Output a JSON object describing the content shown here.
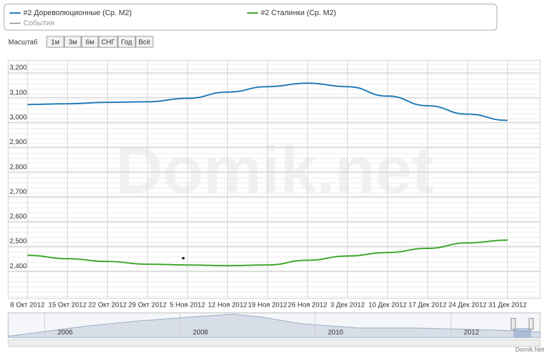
{
  "chart_data": {
    "type": "line",
    "legend": [
      "#2 Дореволюционные (Ср. М2)",
      "#2 Сталинки (Ср. М2)",
      "События"
    ],
    "events_color": "#aaaaaa",
    "x": [
      "8 Окт 2012",
      "15 Окт 2012",
      "22 Окт 2012",
      "29 Окт 2012",
      "5 Ноя 2012",
      "12 Ноя 2012",
      "19 Ноя 2012",
      "26 Ноя 2012",
      "3 Дек 2012",
      "10 Дек 2012",
      "17 Дек 2012",
      "24 Дек 2012",
      "31 Дек 2012"
    ],
    "series": [
      {
        "name": "#2 Дореволюционные (Ср. М2)",
        "color": "#1f7ab8",
        "values": [
          3072,
          3075,
          3081,
          3083,
          3097,
          3122,
          3144,
          3158,
          3144,
          3106,
          3067,
          3033,
          3008
        ]
      },
      {
        "name": "#2 Сталинки (Ср. М2)",
        "color": "#3ea62a",
        "values": [
          2464,
          2450,
          2439,
          2428,
          2425,
          2422,
          2425,
          2444,
          2461,
          2475,
          2492,
          2514,
          2525
        ]
      }
    ],
    "ylim": [
      2290,
      3250
    ],
    "yticks": [
      {
        "value": 2400,
        "label": "2,400"
      },
      {
        "value": 2500,
        "label": "2,500"
      },
      {
        "value": 2600,
        "label": "2,600"
      },
      {
        "value": 2700,
        "label": "2,700"
      },
      {
        "value": 2800,
        "label": "2,800"
      },
      {
        "value": 2900,
        "label": "2,900"
      },
      {
        "value": 3000,
        "label": "3,000"
      },
      {
        "value": 3100,
        "label": "3,100"
      },
      {
        "value": 3200,
        "label": "3,200"
      }
    ],
    "grid": true
  },
  "zoom": {
    "label": "Масштаб",
    "buttons": [
      "1м",
      "3м",
      "6м",
      "СНГ",
      "Год",
      "Всё"
    ]
  },
  "navigator": {
    "years": [
      "2006",
      "2008",
      "2010",
      "2012"
    ]
  },
  "watermark": "Domik.net",
  "footer": "Domik.Net"
}
